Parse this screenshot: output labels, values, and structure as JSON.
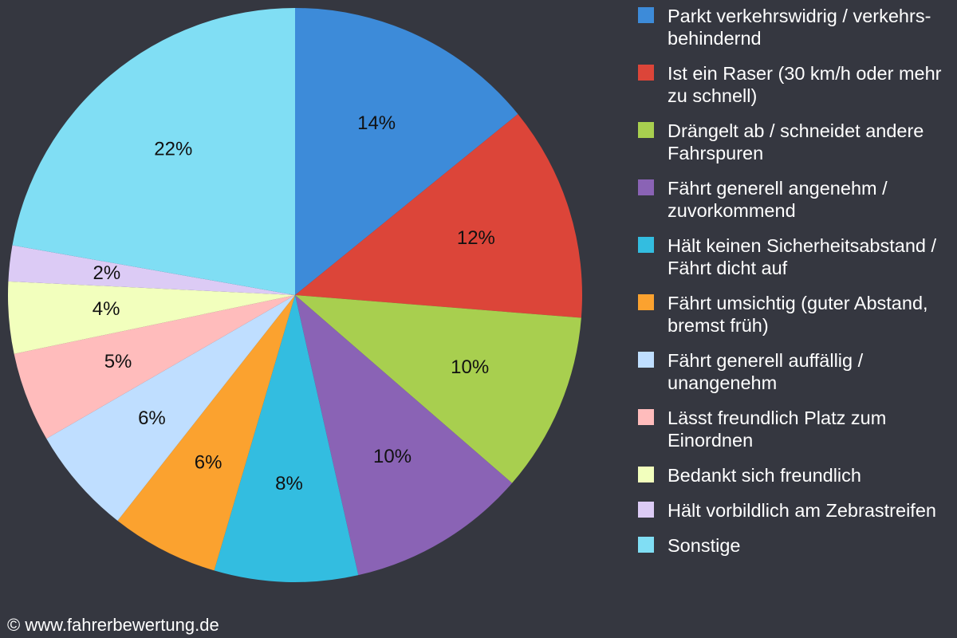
{
  "chart_data": {
    "type": "pie",
    "categories": [
      "Parkt verkehrswidrig / verkehrs-behindernd",
      "Ist ein Raser (30 km/h oder mehr zu schnell)",
      "Drängelt ab / schneidet andere Fahrspuren",
      "Fährt generell angenehm / zuvorkommend",
      "Hält keinen Sicherheitsabstand / Fährt dicht auf",
      "Fährt umsichtig (guter Abstand, bremst früh)",
      "Fährt generell auffällig / unangenehm",
      "Lässt freundlich Platz zum Einordnen",
      "Bedankt sich freundlich",
      "Hält vorbildlich am Zebrastreifen",
      "Sonstige"
    ],
    "values": [
      14,
      12,
      10,
      10,
      8,
      6,
      6,
      5,
      4,
      2,
      22
    ],
    "value_labels": [
      "14%",
      "12%",
      "10%",
      "10%",
      "8%",
      "6%",
      "6%",
      "5%",
      "4%",
      "2%",
      "22%"
    ],
    "colors": [
      "#3d8bd9",
      "#dc4539",
      "#a8cf4f",
      "#8a63b5",
      "#33bde0",
      "#fba22f",
      "#bfdeff",
      "#ffbcbc",
      "#f2ffbd",
      "#dccbf5",
      "#80def4"
    ],
    "legend": "right"
  },
  "footer": "© www.fahrerbewertung.de"
}
